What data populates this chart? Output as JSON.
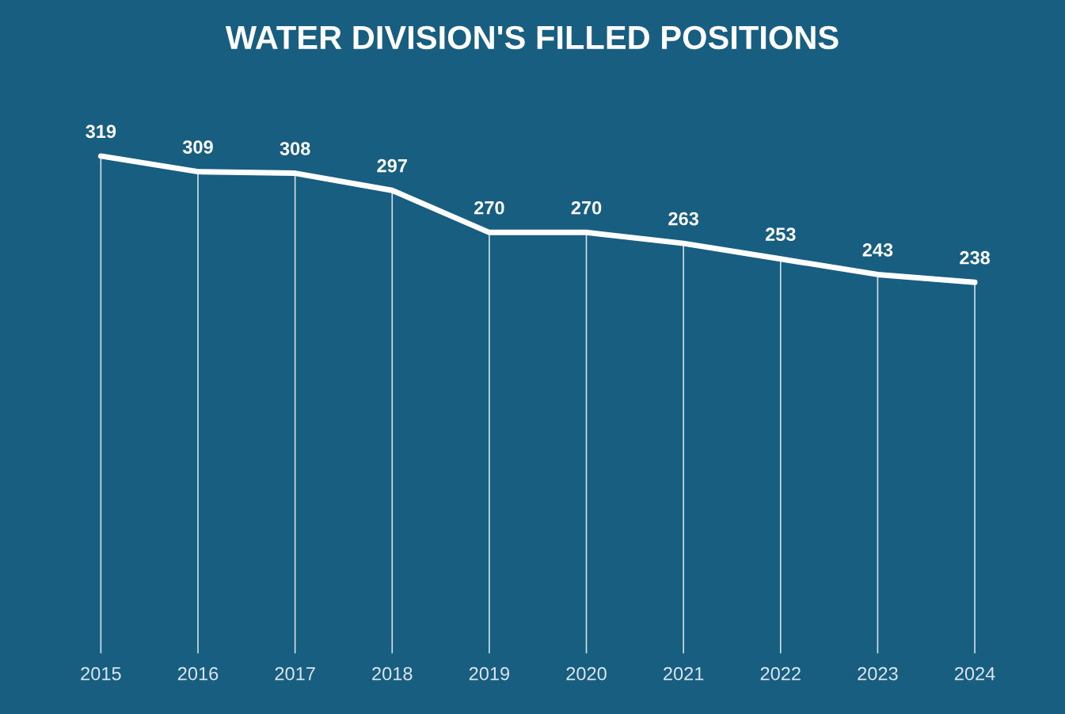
{
  "chart_data": {
    "type": "line",
    "title": "WATER DIVISION'S FILLED POSITIONS",
    "categories": [
      "2015",
      "2016",
      "2017",
      "2018",
      "2019",
      "2020",
      "2021",
      "2022",
      "2023",
      "2024"
    ],
    "series": [
      {
        "color": "#ffffff",
        "values": [
          319,
          309,
          308,
          297,
          270,
          270,
          263,
          253,
          243,
          238
        ]
      }
    ],
    "data_labels": true,
    "grid": "x",
    "line_style": "solid",
    "tick_labels": "x"
  }
}
